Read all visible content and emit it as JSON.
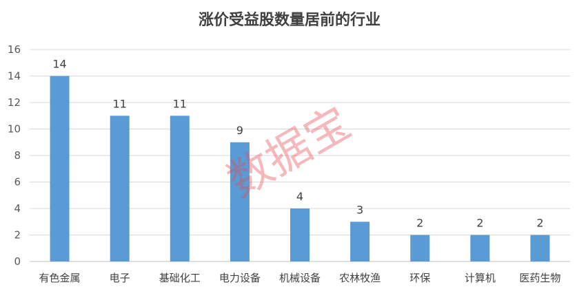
{
  "chart_data": {
    "type": "bar",
    "title": "涨价受益股数量居前的行业",
    "categories": [
      "有色金属",
      "电子",
      "基础化工",
      "电力设备",
      "机械设备",
      "农林牧渔",
      "环保",
      "计算机",
      "医药生物"
    ],
    "values": [
      14,
      11,
      11,
      9,
      4,
      3,
      2,
      2,
      2
    ],
    "xlabel": "",
    "ylabel": "",
    "ylim": [
      0,
      16
    ],
    "yticks": [
      0,
      2,
      4,
      6,
      8,
      10,
      12,
      14,
      16
    ],
    "grid": true,
    "data_labels": true,
    "bar_color": "#5b9bd5",
    "watermark": "数据宝"
  }
}
